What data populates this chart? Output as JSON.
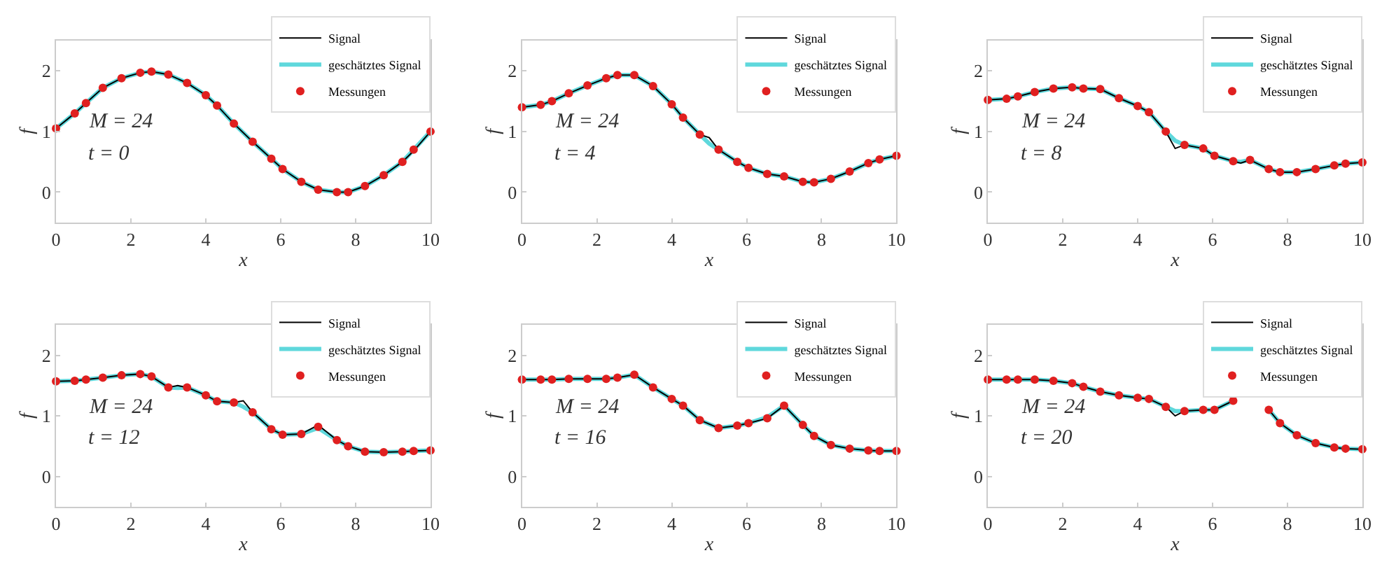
{
  "chart_data": [
    {
      "type": "line",
      "xlabel": "x",
      "ylabel": "f",
      "annotations": [
        "M = 24",
        "t = 0"
      ],
      "legend": "top right",
      "xlim": [
        0,
        10
      ],
      "xticks": [
        0,
        2,
        4,
        6,
        8,
        10
      ],
      "ylim": [
        -0.5,
        2.5
      ],
      "yticks": [
        0,
        1,
        2
      ],
      "x": [
        0,
        0.5,
        0.8,
        1.25,
        1.75,
        2.25,
        2.55,
        3,
        3.5,
        4,
        4.3,
        4.75,
        5.25,
        5.75,
        6.05,
        6.55,
        7,
        7.5,
        7.8,
        8.25,
        8.75,
        9.25,
        9.55,
        10
      ],
      "series": [
        {
          "name": "Signal",
          "color": "#000000",
          "values": [
            1.05,
            1.3,
            1.47,
            1.72,
            1.88,
            1.97,
            1.99,
            1.94,
            1.8,
            1.6,
            1.43,
            1.13,
            0.83,
            0.55,
            0.38,
            0.17,
            0.04,
            0.0,
            0.0,
            0.1,
            0.28,
            0.5,
            0.68,
            1.0
          ]
        },
        {
          "name": "geschätztes Signal",
          "color": "#5fd8dc",
          "values": [
            1.05,
            1.3,
            1.47,
            1.72,
            1.88,
            1.97,
            1.99,
            1.94,
            1.8,
            1.6,
            1.43,
            1.13,
            0.83,
            0.55,
            0.38,
            0.17,
            0.04,
            0.0,
            0.0,
            0.1,
            0.28,
            0.5,
            0.7,
            1.0
          ]
        },
        {
          "name": "Messungen",
          "type": "scatter",
          "marker": "circle",
          "color": "#e02020",
          "values": [
            1.05,
            1.3,
            1.47,
            1.72,
            1.88,
            1.97,
            1.99,
            1.94,
            1.8,
            1.6,
            1.43,
            1.13,
            0.83,
            0.55,
            0.38,
            0.17,
            0.04,
            0.0,
            0.0,
            0.1,
            0.28,
            0.5,
            0.7,
            1.0
          ]
        }
      ]
    },
    {
      "type": "line",
      "xlabel": "x",
      "ylabel": "f",
      "annotations": [
        "M = 24",
        "t = 4"
      ],
      "legend": "top right",
      "xlim": [
        0,
        10
      ],
      "xticks": [
        0,
        2,
        4,
        6,
        8,
        10
      ],
      "ylim": [
        -0.5,
        2.5
      ],
      "yticks": [
        0,
        1,
        2
      ],
      "x": [
        0,
        0.5,
        0.8,
        1.25,
        1.75,
        2.25,
        2.55,
        3,
        3.5,
        4,
        4.3,
        4.75,
        5.25,
        5.75,
        6.05,
        6.55,
        7,
        7.5,
        7.8,
        8.25,
        8.75,
        9.25,
        9.55,
        10
      ],
      "series": [
        {
          "name": "Signal",
          "color": "#000000",
          "x": [
            0,
            0.5,
            0.8,
            1.25,
            1.75,
            2.25,
            2.55,
            3,
            3.5,
            4,
            4.3,
            4.75,
            5,
            5.25,
            5.75,
            6.05,
            6.55,
            7,
            7.5,
            7.8,
            8.25,
            8.75,
            9.25,
            9.55,
            10
          ],
          "values": [
            1.4,
            1.44,
            1.5,
            1.63,
            1.76,
            1.88,
            1.93,
            1.93,
            1.75,
            1.45,
            1.23,
            0.95,
            0.9,
            0.7,
            0.5,
            0.4,
            0.3,
            0.26,
            0.17,
            0.16,
            0.22,
            0.34,
            0.48,
            0.54,
            0.6
          ]
        },
        {
          "name": "geschätztes Signal",
          "color": "#5fd8dc",
          "x": [
            0,
            0.5,
            0.8,
            1.25,
            1.75,
            2.25,
            2.55,
            3,
            3.5,
            4,
            4.3,
            4.75,
            5,
            5.25,
            5.75,
            6.05,
            6.55,
            7,
            7.5,
            7.8,
            8.25,
            8.75,
            9.25,
            9.55,
            10
          ],
          "values": [
            1.4,
            1.44,
            1.5,
            1.63,
            1.76,
            1.88,
            1.93,
            1.93,
            1.75,
            1.45,
            1.23,
            0.95,
            0.8,
            0.7,
            0.5,
            0.4,
            0.3,
            0.26,
            0.17,
            0.16,
            0.22,
            0.34,
            0.48,
            0.54,
            0.6
          ]
        },
        {
          "name": "Messungen",
          "type": "scatter",
          "marker": "circle",
          "color": "#e02020",
          "values": [
            1.4,
            1.44,
            1.5,
            1.63,
            1.76,
            1.88,
            1.93,
            1.93,
            1.75,
            1.45,
            1.23,
            0.95,
            0.7,
            0.5,
            0.4,
            0.3,
            0.26,
            0.17,
            0.16,
            0.22,
            0.34,
            0.48,
            0.54,
            0.6
          ]
        }
      ]
    },
    {
      "type": "line",
      "xlabel": "x",
      "ylabel": "f",
      "annotations": [
        "M = 24",
        "t = 8"
      ],
      "legend": "top right",
      "xlim": [
        0,
        10
      ],
      "xticks": [
        0,
        2,
        4,
        6,
        8,
        10
      ],
      "ylim": [
        -0.5,
        2.5
      ],
      "yticks": [
        0,
        1,
        2
      ],
      "x": [
        0,
        0.5,
        0.8,
        1.25,
        1.75,
        2.25,
        2.55,
        3,
        3.5,
        4,
        4.3,
        4.75,
        5.25,
        5.75,
        6.05,
        6.55,
        7,
        7.5,
        7.8,
        8.25,
        8.75,
        9.25,
        9.55,
        10
      ],
      "series": [
        {
          "name": "Signal",
          "color": "#000000",
          "x": [
            0,
            0.5,
            0.8,
            1.25,
            1.75,
            2.25,
            2.55,
            3,
            3.5,
            4,
            4.3,
            4.75,
            5,
            5.25,
            5.75,
            6.05,
            6.55,
            6.75,
            7,
            7.5,
            7.8,
            8.25,
            8.75,
            9.25,
            9.55,
            10
          ],
          "values": [
            1.52,
            1.54,
            1.58,
            1.65,
            1.71,
            1.73,
            1.71,
            1.7,
            1.55,
            1.42,
            1.32,
            1.0,
            0.72,
            0.78,
            0.72,
            0.6,
            0.51,
            0.48,
            0.53,
            0.38,
            0.33,
            0.33,
            0.38,
            0.44,
            0.47,
            0.49
          ]
        },
        {
          "name": "geschätztes Signal",
          "color": "#5fd8dc",
          "x": [
            0,
            0.5,
            0.8,
            1.25,
            1.75,
            2.25,
            2.55,
            3,
            3.5,
            4,
            4.3,
            4.75,
            5,
            5.25,
            5.75,
            6.05,
            6.55,
            6.75,
            7,
            7.5,
            7.8,
            8.25,
            8.75,
            9.25,
            9.55,
            10
          ],
          "values": [
            1.52,
            1.54,
            1.58,
            1.65,
            1.71,
            1.73,
            1.71,
            1.7,
            1.55,
            1.42,
            1.32,
            1.0,
            0.85,
            0.78,
            0.72,
            0.6,
            0.51,
            0.5,
            0.53,
            0.38,
            0.33,
            0.33,
            0.38,
            0.44,
            0.47,
            0.49
          ]
        },
        {
          "name": "Messungen",
          "type": "scatter",
          "marker": "circle",
          "color": "#e02020",
          "values": [
            1.52,
            1.54,
            1.58,
            1.65,
            1.71,
            1.73,
            1.71,
            1.7,
            1.55,
            1.42,
            1.32,
            1.0,
            0.78,
            0.72,
            0.6,
            0.51,
            0.53,
            0.38,
            0.33,
            0.33,
            0.38,
            0.44,
            0.47,
            0.49
          ]
        }
      ]
    },
    {
      "type": "line",
      "xlabel": "x",
      "ylabel": "f",
      "annotations": [
        "M = 24",
        "t = 12"
      ],
      "legend": "top right",
      "xlim": [
        0,
        10
      ],
      "xticks": [
        0,
        2,
        4,
        6,
        8,
        10
      ],
      "ylim": [
        -0.5,
        2.5
      ],
      "yticks": [
        0,
        1,
        2
      ],
      "x": [
        0,
        0.5,
        0.8,
        1.25,
        1.75,
        2.25,
        2.55,
        3,
        3.5,
        4,
        4.3,
        4.75,
        5.25,
        5.75,
        6.05,
        6.55,
        7,
        7.5,
        7.8,
        8.25,
        8.75,
        9.25,
        9.55,
        10
      ],
      "series": [
        {
          "name": "Signal",
          "color": "#000000",
          "x": [
            0,
            0.5,
            0.8,
            1.25,
            1.75,
            2.25,
            2.55,
            3,
            3.25,
            3.5,
            4,
            4.3,
            4.75,
            5,
            5.25,
            5.75,
            6.05,
            6.55,
            7,
            7.5,
            7.8,
            8.25,
            8.75,
            9.25,
            9.55,
            10
          ],
          "values": [
            1.57,
            1.58,
            1.6,
            1.63,
            1.67,
            1.69,
            1.65,
            1.47,
            1.5,
            1.47,
            1.34,
            1.24,
            1.22,
            1.25,
            1.06,
            0.78,
            0.69,
            0.7,
            0.85,
            0.6,
            0.5,
            0.41,
            0.4,
            0.41,
            0.42,
            0.43
          ]
        },
        {
          "name": "geschätztes Signal",
          "color": "#5fd8dc",
          "x": [
            0,
            0.5,
            0.8,
            1.25,
            1.75,
            2.25,
            2.55,
            3,
            3.25,
            3.5,
            4,
            4.3,
            4.75,
            5,
            5.25,
            5.75,
            6.05,
            6.55,
            7,
            7.5,
            7.8,
            8.25,
            8.75,
            9.25,
            9.55,
            10
          ],
          "values": [
            1.57,
            1.58,
            1.6,
            1.63,
            1.67,
            1.69,
            1.65,
            1.47,
            1.46,
            1.47,
            1.34,
            1.24,
            1.22,
            1.15,
            1.06,
            0.78,
            0.69,
            0.7,
            0.8,
            0.6,
            0.5,
            0.41,
            0.4,
            0.41,
            0.42,
            0.43
          ]
        },
        {
          "name": "Messungen",
          "type": "scatter",
          "marker": "circle",
          "color": "#e02020",
          "values": [
            1.57,
            1.58,
            1.6,
            1.63,
            1.67,
            1.69,
            1.65,
            1.47,
            1.47,
            1.34,
            1.24,
            1.22,
            1.06,
            0.78,
            0.69,
            0.7,
            0.82,
            0.6,
            0.5,
            0.41,
            0.4,
            0.41,
            0.42,
            0.43
          ]
        }
      ]
    },
    {
      "type": "line",
      "xlabel": "x",
      "ylabel": "f",
      "annotations": [
        "M = 24",
        "t = 16"
      ],
      "legend": "top right",
      "xlim": [
        0,
        10
      ],
      "xticks": [
        0,
        2,
        4,
        6,
        8,
        10
      ],
      "ylim": [
        -0.5,
        2.5
      ],
      "yticks": [
        0,
        1,
        2
      ],
      "x": [
        0,
        0.5,
        0.8,
        1.25,
        1.75,
        2.25,
        2.55,
        3,
        3.5,
        4,
        4.3,
        4.75,
        5.25,
        5.75,
        6.05,
        6.55,
        7,
        7.5,
        7.8,
        8.25,
        8.75,
        9.25,
        9.55,
        10
      ],
      "series": [
        {
          "name": "Signal",
          "color": "#000000",
          "values": [
            1.6,
            1.6,
            1.6,
            1.61,
            1.61,
            1.61,
            1.63,
            1.68,
            1.47,
            1.28,
            1.17,
            0.93,
            0.8,
            0.84,
            0.88,
            0.96,
            1.17,
            0.85,
            0.67,
            0.52,
            0.46,
            0.43,
            0.42,
            0.42
          ]
        },
        {
          "name": "geschätztes Signal",
          "color": "#5fd8dc",
          "values": [
            1.6,
            1.6,
            1.6,
            1.61,
            1.61,
            1.61,
            1.63,
            1.68,
            1.47,
            1.28,
            1.17,
            0.93,
            0.8,
            0.84,
            0.88,
            0.98,
            1.17,
            0.85,
            0.67,
            0.52,
            0.46,
            0.43,
            0.42,
            0.42
          ]
        },
        {
          "name": "Messungen",
          "type": "scatter",
          "marker": "circle",
          "color": "#e02020",
          "values": [
            1.6,
            1.6,
            1.6,
            1.61,
            1.61,
            1.61,
            1.63,
            1.68,
            1.47,
            1.28,
            1.17,
            0.93,
            0.8,
            0.84,
            0.88,
            0.96,
            1.17,
            0.85,
            0.67,
            0.52,
            0.46,
            0.43,
            0.42,
            0.42
          ]
        }
      ]
    },
    {
      "type": "line",
      "xlabel": "x",
      "ylabel": "f",
      "annotations": [
        "M = 24",
        "t = 20"
      ],
      "legend": "top right",
      "xlim": [
        0,
        10
      ],
      "xticks": [
        0,
        2,
        4,
        6,
        8,
        10
      ],
      "ylim": [
        -0.5,
        2.5
      ],
      "yticks": [
        0,
        1,
        2
      ],
      "x": [
        0,
        0.5,
        0.8,
        1.25,
        1.75,
        2.25,
        2.55,
        3,
        3.5,
        4,
        4.3,
        4.75,
        5.25,
        5.75,
        6.05,
        6.55,
        7,
        7.5,
        7.8,
        8.25,
        8.75,
        9.25,
        9.55,
        10
      ],
      "series": [
        {
          "name": "Signal",
          "color": "#000000",
          "x": [
            0,
            0.5,
            0.8,
            1.25,
            1.75,
            2.25,
            2.55,
            3,
            3.5,
            4,
            4.3,
            4.75,
            5,
            5.25,
            5.75,
            6.05,
            6.55,
            6.85,
            7.15,
            7.5,
            7.8,
            8.25,
            8.75,
            9.25,
            9.55,
            10
          ],
          "values": [
            1.6,
            1.6,
            1.6,
            1.6,
            1.58,
            1.54,
            1.48,
            1.4,
            1.34,
            1.3,
            1.28,
            1.15,
            1.0,
            1.08,
            1.1,
            1.1,
            1.25,
            null,
            null,
            1.1,
            0.88,
            0.68,
            0.55,
            0.48,
            0.46,
            0.45
          ]
        },
        {
          "name": "geschätztes Signal",
          "color": "#5fd8dc",
          "x": [
            0,
            0.5,
            0.8,
            1.25,
            1.75,
            2.25,
            2.55,
            3,
            3.5,
            4,
            4.3,
            4.75,
            5,
            5.25,
            5.75,
            6.05,
            6.55,
            6.85,
            7.15,
            7.5,
            7.8,
            8.25,
            8.75,
            9.25,
            9.55,
            10
          ],
          "values": [
            1.6,
            1.6,
            1.6,
            1.6,
            1.58,
            1.54,
            1.48,
            1.4,
            1.34,
            1.3,
            1.28,
            1.15,
            1.08,
            1.08,
            1.1,
            1.1,
            1.25,
            null,
            null,
            1.1,
            0.88,
            0.68,
            0.55,
            0.48,
            0.46,
            0.45
          ]
        },
        {
          "name": "Messungen",
          "type": "scatter",
          "marker": "circle",
          "color": "#e02020",
          "values": [
            1.6,
            1.6,
            1.6,
            1.6,
            1.58,
            1.54,
            1.48,
            1.4,
            1.34,
            1.3,
            1.28,
            1.15,
            1.08,
            1.1,
            1.1,
            1.25,
            null,
            1.1,
            0.88,
            0.68,
            0.55,
            0.48,
            0.46,
            0.45
          ]
        }
      ]
    }
  ]
}
